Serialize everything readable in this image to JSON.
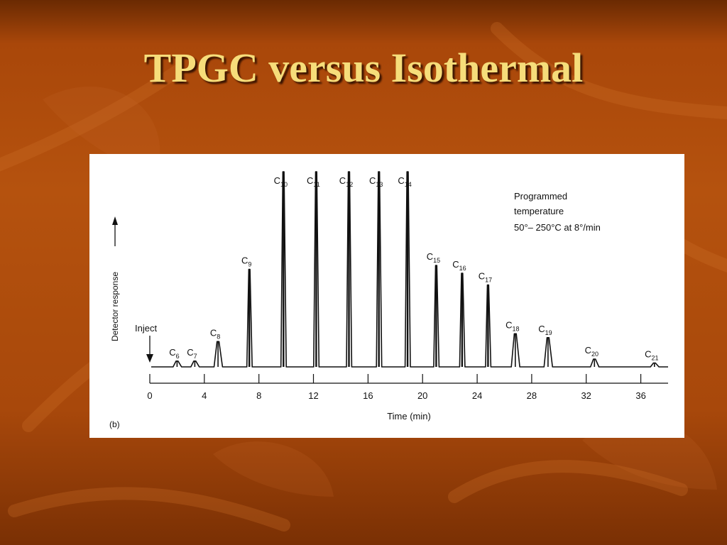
{
  "slide": {
    "title": "TPGC versus Isothermal",
    "colors": {
      "title": "#f6dd7a",
      "background": "#b5520e",
      "panel": "#ffffff",
      "trace": "#111111"
    }
  },
  "chart_data": {
    "type": "line",
    "panel_label": "(b)",
    "xlabel": "Time (min)",
    "ylabel": "Detector response",
    "xlim": [
      0,
      38
    ],
    "x_ticks": [
      0,
      4,
      8,
      12,
      16,
      20,
      24,
      28,
      32,
      36
    ],
    "inject_label": "Inject",
    "inject_time": 0,
    "annotation_lines": [
      "Programmed",
      "temperature",
      "50°– 250°C at 8°/min"
    ],
    "peaks": [
      {
        "label": "C6",
        "base": "C",
        "sub": "6",
        "time": 2.0,
        "height": 0.03
      },
      {
        "label": "C7",
        "base": "C",
        "sub": "7",
        "time": 3.3,
        "height": 0.03
      },
      {
        "label": "C8",
        "base": "C",
        "sub": "8",
        "time": 5.0,
        "height": 0.13
      },
      {
        "label": "C9",
        "base": "C",
        "sub": "9",
        "time": 7.3,
        "height": 0.5
      },
      {
        "label": "C10",
        "base": "C",
        "sub": "10",
        "time": 9.8,
        "height": 1.0
      },
      {
        "label": "C11",
        "base": "C",
        "sub": "11",
        "time": 12.2,
        "height": 1.0
      },
      {
        "label": "C12",
        "base": "C",
        "sub": "12",
        "time": 14.6,
        "height": 1.0
      },
      {
        "label": "C13",
        "base": "C",
        "sub": "13",
        "time": 16.8,
        "height": 1.0
      },
      {
        "label": "C14",
        "base": "C",
        "sub": "14",
        "time": 18.9,
        "height": 1.0
      },
      {
        "label": "C15",
        "base": "C",
        "sub": "15",
        "time": 21.0,
        "height": 0.52
      },
      {
        "label": "C16",
        "base": "C",
        "sub": "16",
        "time": 22.9,
        "height": 0.48
      },
      {
        "label": "C17",
        "base": "C",
        "sub": "17",
        "time": 24.8,
        "height": 0.42
      },
      {
        "label": "C18",
        "base": "C",
        "sub": "18",
        "time": 26.8,
        "height": 0.17
      },
      {
        "label": "C19",
        "base": "C",
        "sub": "19",
        "time": 29.2,
        "height": 0.15
      },
      {
        "label": "C20",
        "base": "C",
        "sub": "20",
        "time": 32.6,
        "height": 0.04
      },
      {
        "label": "C21",
        "base": "C",
        "sub": "21",
        "time": 37.0,
        "height": 0.02
      }
    ]
  }
}
